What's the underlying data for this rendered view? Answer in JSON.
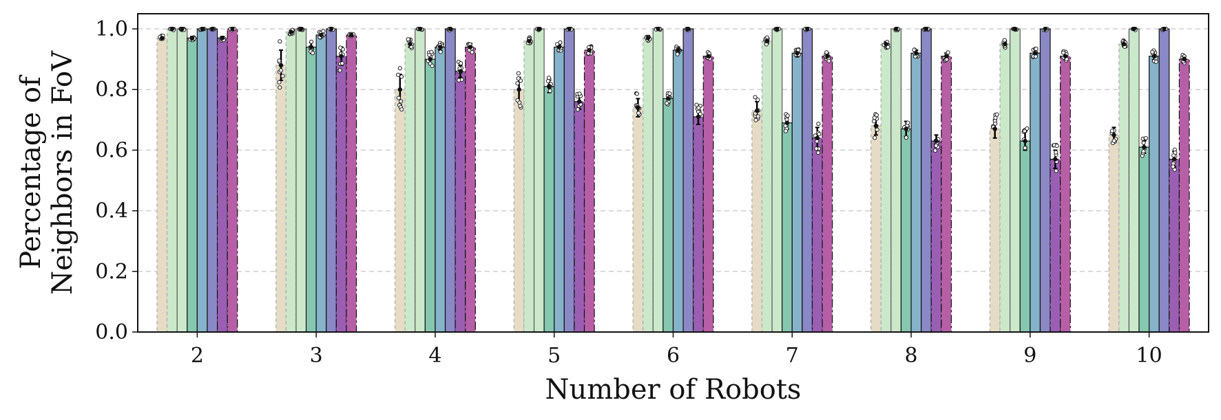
{
  "chart_data": {
    "type": "bar",
    "title": "",
    "xlabel": "Number of Robots",
    "ylabel_lines": [
      "Percentage of",
      "Neighbors in FoV"
    ],
    "ylim": [
      0.0,
      1.05
    ],
    "yticks": [
      0.0,
      0.2,
      0.4,
      0.6,
      0.8,
      1.0
    ],
    "ytick_labels": [
      "0.0",
      "0.2",
      "0.4",
      "0.6",
      "0.8",
      "1.0"
    ],
    "grid": "y-dashed",
    "categories": [
      "2",
      "3",
      "4",
      "5",
      "6",
      "7",
      "8",
      "9",
      "10"
    ],
    "series": [
      {
        "color": "#e6dcc6",
        "edge": "#aaaaaa",
        "dash": "5,4",
        "values": [
          0.97,
          0.88,
          0.8,
          0.8,
          0.74,
          0.73,
          0.68,
          0.67,
          0.65
        ],
        "errors": [
          0.005,
          0.05,
          0.05,
          0.04,
          0.03,
          0.03,
          0.03,
          0.03,
          0.025
        ]
      },
      {
        "color": "#cbe8cb",
        "edge": "#aaaaaa",
        "dash": "5,4",
        "values": [
          1.0,
          0.99,
          0.95,
          0.96,
          0.97,
          0.96,
          0.95,
          0.95,
          0.95
        ],
        "errors": [
          0.0,
          0.005,
          0.01,
          0.01,
          0.008,
          0.008,
          0.008,
          0.01,
          0.008
        ]
      },
      {
        "color": "#cbe8cb",
        "edge": "#555555",
        "dash": "",
        "values": [
          1.0,
          1.0,
          1.0,
          1.0,
          1.0,
          1.0,
          1.0,
          1.0,
          1.0
        ],
        "errors": [
          0,
          0,
          0,
          0,
          0,
          0,
          0,
          0,
          0
        ]
      },
      {
        "color": "#86c7b0",
        "edge": "#111111",
        "dash": "",
        "values": [
          0.97,
          0.94,
          0.9,
          0.81,
          0.77,
          0.69,
          0.67,
          0.63,
          0.61
        ],
        "errors": [
          0.005,
          0.015,
          0.015,
          0.02,
          0.015,
          0.02,
          0.025,
          0.03,
          0.02
        ]
      },
      {
        "color": "#86b3c9",
        "edge": "#111111",
        "dash": "",
        "values": [
          1.0,
          0.98,
          0.94,
          0.94,
          0.93,
          0.92,
          0.92,
          0.92,
          0.91
        ],
        "errors": [
          0.0,
          0.008,
          0.01,
          0.01,
          0.01,
          0.012,
          0.01,
          0.01,
          0.012
        ]
      },
      {
        "color": "#8b88c6",
        "edge": "#111111",
        "dash": "",
        "values": [
          1.0,
          1.0,
          1.0,
          1.0,
          1.0,
          1.0,
          1.0,
          1.0,
          1.0
        ],
        "errors": [
          0,
          0,
          0,
          0,
          0,
          0,
          0,
          0,
          0
        ]
      },
      {
        "color": "#9a5fb3",
        "edge": "#111111",
        "dash": "12,4,3,4",
        "values": [
          0.97,
          0.91,
          0.86,
          0.76,
          0.71,
          0.64,
          0.63,
          0.57,
          0.57
        ],
        "errors": [
          0.005,
          0.03,
          0.02,
          0.025,
          0.025,
          0.035,
          0.02,
          0.03,
          0.025
        ]
      },
      {
        "color": "#b65fa6",
        "edge": "#111111",
        "dash": "12,4,3,4",
        "values": [
          1.0,
          0.98,
          0.94,
          0.93,
          0.91,
          0.91,
          0.91,
          0.91,
          0.9
        ],
        "errors": [
          0.0,
          0.005,
          0.012,
          0.008,
          0.01,
          0.01,
          0.01,
          0.01,
          0.01
        ]
      }
    ]
  }
}
